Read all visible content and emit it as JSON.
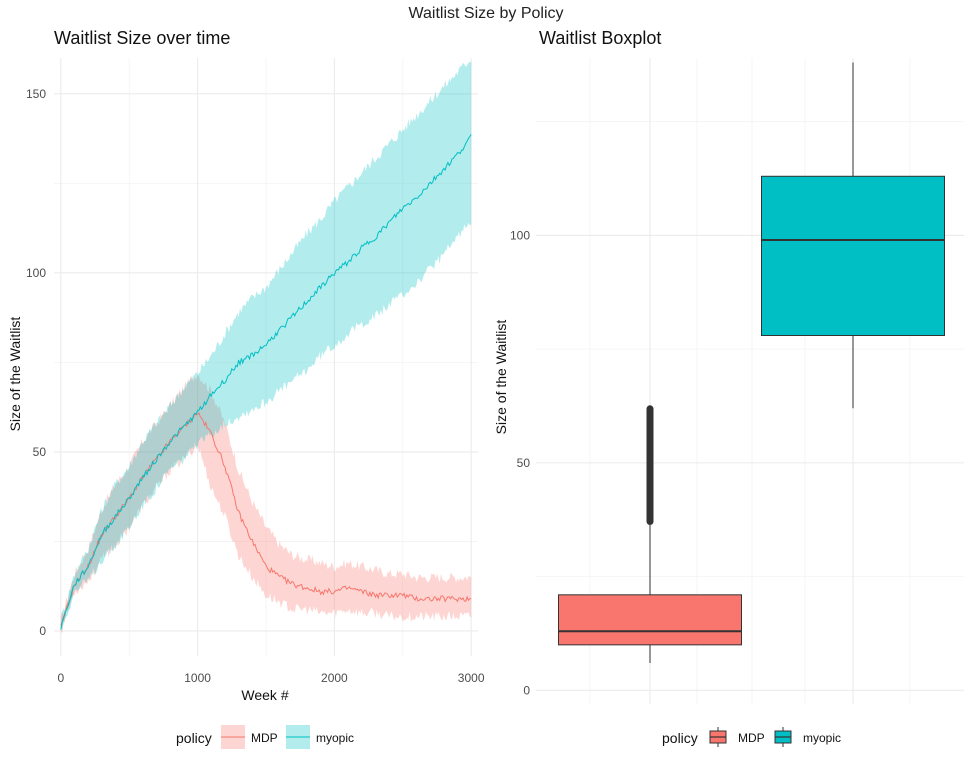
{
  "figure": {
    "title": "Waitlist Size by Policy"
  },
  "colors": {
    "MDP": "#F8766D",
    "myopic": "#00BFC4",
    "MDP_band": "#F8766D",
    "myopic_band": "#00BFC4"
  },
  "chart_data": [
    {
      "type": "line",
      "title": "Waitlist Size over time",
      "xlabel": "Week #",
      "ylabel": "Size of the Waitlist",
      "xlim": [
        -50,
        3050
      ],
      "ylim": [
        -7,
        160
      ],
      "x_ticks": [
        0,
        1000,
        2000,
        3000
      ],
      "y_ticks": [
        0,
        50,
        100,
        150
      ],
      "grid": true,
      "legend": {
        "title": "policy",
        "position": "bottom",
        "entries": [
          "MDP",
          "myopic"
        ]
      },
      "series": [
        {
          "name": "MDP",
          "x": [
            0,
            100,
            200,
            300,
            400,
            500,
            600,
            700,
            800,
            900,
            1000,
            1100,
            1200,
            1300,
            1400,
            1500,
            1600,
            1700,
            1800,
            1900,
            2000,
            2100,
            2200,
            2300,
            2400,
            2500,
            2600,
            2700,
            2800,
            2900,
            3000
          ],
          "mean": [
            1,
            13,
            18,
            27,
            32,
            37,
            43,
            48,
            53,
            57,
            61,
            55,
            46,
            33,
            25,
            18,
            15,
            13,
            12,
            11,
            11,
            12,
            11,
            10,
            10,
            10,
            9,
            9,
            9,
            9,
            9
          ],
          "lower": [
            0,
            11,
            14,
            20,
            24,
            29,
            35,
            40,
            45,
            48,
            52,
            40,
            32,
            21,
            15,
            10,
            8,
            6,
            6,
            5,
            5,
            6,
            5,
            5,
            4,
            4,
            4,
            4,
            4,
            4,
            4
          ],
          "upper": [
            3,
            16,
            23,
            34,
            41,
            46,
            53,
            58,
            63,
            68,
            72,
            67,
            58,
            45,
            36,
            29,
            24,
            21,
            20,
            19,
            18,
            19,
            18,
            17,
            16,
            16,
            15,
            15,
            15,
            15,
            15
          ]
        },
        {
          "name": "myopic",
          "x": [
            0,
            100,
            200,
            300,
            400,
            500,
            600,
            700,
            800,
            900,
            1000,
            1100,
            1200,
            1300,
            1400,
            1500,
            1600,
            1700,
            1800,
            1900,
            2000,
            2100,
            2200,
            2300,
            2400,
            2500,
            2600,
            2700,
            2800,
            2900,
            3000
          ],
          "mean": [
            1,
            13,
            18,
            27,
            32,
            37,
            43,
            48,
            53,
            57,
            61,
            66,
            70,
            75,
            77,
            80,
            84,
            88,
            92,
            96,
            100,
            103,
            107,
            110,
            114,
            118,
            121,
            125,
            129,
            133,
            138
          ],
          "lower": [
            0,
            11,
            14,
            20,
            24,
            29,
            35,
            40,
            45,
            48,
            52,
            55,
            58,
            60,
            62,
            64,
            67,
            70,
            73,
            77,
            80,
            83,
            86,
            88,
            91,
            94,
            97,
            101,
            105,
            110,
            115
          ],
          "upper": [
            3,
            16,
            23,
            34,
            41,
            46,
            53,
            58,
            63,
            68,
            72,
            77,
            83,
            89,
            93,
            96,
            101,
            106,
            111,
            115,
            120,
            124,
            128,
            132,
            136,
            140,
            144,
            148,
            152,
            156,
            160
          ]
        }
      ]
    },
    {
      "type": "boxplot",
      "title": "Waitlist Boxplot",
      "xlabel": "",
      "ylabel": "Size of the Waitlist",
      "ylim": [
        -3,
        139
      ],
      "y_ticks": [
        0,
        50,
        100
      ],
      "grid": true,
      "legend": {
        "title": "policy",
        "position": "bottom",
        "entries": [
          "MDP",
          "myopic"
        ]
      },
      "boxes": [
        {
          "name": "MDP",
          "min": 6,
          "q1": 10,
          "median": 13,
          "q3": 21,
          "whisker_high": 37,
          "outliers_from": 37,
          "outliers_to": 62
        },
        {
          "name": "myopic",
          "min": 62,
          "q1": 78,
          "median": 99,
          "q3": 113,
          "max": 138
        }
      ]
    }
  ]
}
